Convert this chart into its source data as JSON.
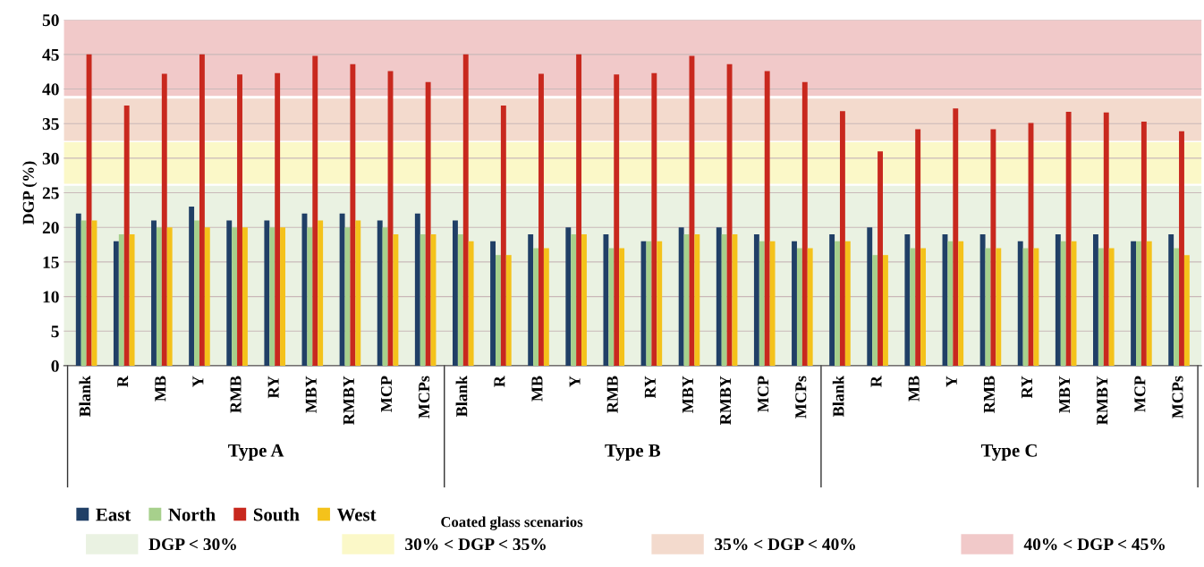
{
  "chart_data": {
    "type": "bar",
    "ylabel": "DGP (%)",
    "categories": [
      "Blank",
      "R",
      "MB",
      "Y",
      "RMB",
      "RY",
      "MBY",
      "RMBY",
      "MCP",
      "MCPs",
      "Blank",
      "R",
      "MB",
      "Y",
      "RMB",
      "RY",
      "MBY",
      "RMBY",
      "MCP",
      "MCPs",
      "Blank",
      "R",
      "MB",
      "Y",
      "RMB",
      "RY",
      "MBY",
      "RMBY",
      "MCP",
      "MCPs"
    ],
    "series": [
      {
        "name": "East",
        "color": "#203f66",
        "values": [
          22,
          18,
          21,
          23,
          21,
          21,
          22,
          22,
          21,
          22,
          21,
          18,
          19,
          20,
          19,
          18,
          20,
          20,
          19,
          18,
          19,
          20,
          19,
          19,
          19,
          18,
          19,
          19,
          18,
          19
        ]
      },
      {
        "name": "North",
        "color": "#a7d08c",
        "values": [
          21,
          19,
          20,
          21,
          20,
          20,
          20,
          20,
          20,
          19,
          19,
          16,
          17,
          19,
          17,
          18,
          19,
          19,
          18,
          17,
          18,
          16,
          17,
          18,
          17,
          17,
          18,
          17,
          18,
          17
        ]
      },
      {
        "name": "South",
        "color": "#c8281e",
        "values": [
          45,
          37.6,
          42.2,
          45,
          42.1,
          42.3,
          44.8,
          43.6,
          42.6,
          41,
          45,
          37.6,
          42.2,
          45,
          42.1,
          42.3,
          44.8,
          43.6,
          42.6,
          41,
          36.8,
          31,
          34.2,
          37.2,
          34.2,
          35.1,
          36.7,
          36.6,
          35.3,
          33.9
        ]
      },
      {
        "name": "West",
        "color": "#f4c21b",
        "values": [
          21,
          19,
          20,
          20,
          20,
          20,
          21,
          21,
          19,
          19,
          18,
          16,
          17,
          19,
          17,
          18,
          19,
          19,
          18,
          17,
          18,
          16,
          17,
          18,
          17,
          17,
          18,
          17,
          18,
          16
        ]
      }
    ],
    "annotations": [
      "Type A",
      "Type B",
      "Type C",
      "Coated glass scenarios"
    ],
    "bands": [
      {
        "axis": "y",
        "from": 0,
        "to": 26,
        "label": "DGP < 30%",
        "color": "#eaf2e2"
      },
      {
        "axis": "y",
        "from": 26.3,
        "to": 32.3,
        "label": "30% < DGP < 35%",
        "color": "#fbf8c8"
      },
      {
        "axis": "y",
        "from": 32.5,
        "to": 38.6,
        "label": "35% < DGP < 40%",
        "color": "#f3dacd"
      },
      {
        "axis": "y",
        "from": 39,
        "to": 50,
        "label": "40% < DGP < 45%",
        "color": "#f1c9c9"
      }
    ],
    "ylim": [
      0,
      50
    ],
    "yticks": [
      0,
      5,
      10,
      15,
      20,
      25,
      30,
      35,
      40,
      45,
      50
    ],
    "grid": "y",
    "legend": "bottom left"
  }
}
